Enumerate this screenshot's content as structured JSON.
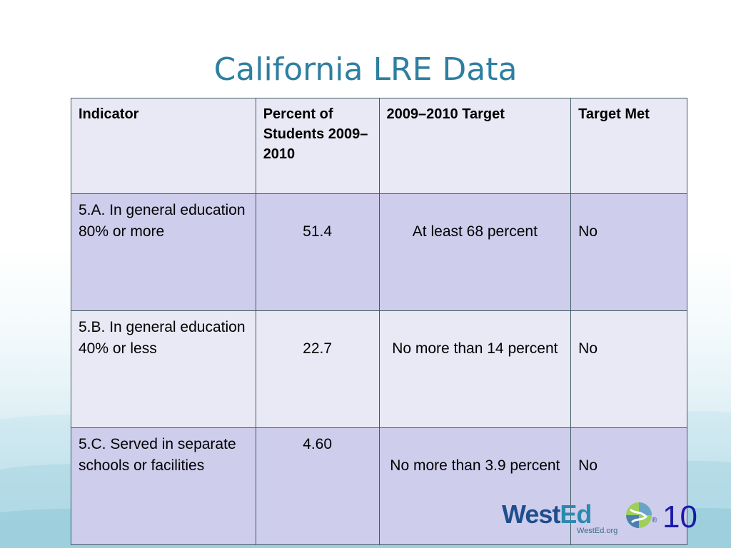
{
  "slide": {
    "title": "California LRE Data",
    "page_number": "10"
  },
  "table": {
    "headers": [
      "Indicator",
      "Percent of Students 2009–2010",
      "2009–2010 Target",
      "Target Met"
    ],
    "rows": [
      {
        "indicator": "5.A. In general education 80% or more",
        "percent": "51.4",
        "target": "At least 68 percent",
        "met": "No"
      },
      {
        "indicator": "5.B. In general education 40% or less",
        "percent": "22.7",
        "target": "No more than 14 percent",
        "met": "No"
      },
      {
        "indicator": "5.C. Served in separate schools or facilities",
        "percent": "4.60",
        "target": "No more than 3.9 percent",
        "met": "No"
      }
    ]
  },
  "logo": {
    "word_1": "West",
    "word_2": "Ed",
    "registered": "®",
    "url": "WestEd.org"
  },
  "colors": {
    "title": "#2e7fa0",
    "header_bg": "#e9e8f5",
    "row_dark_bg": "#cfcdec",
    "row_light_bg": "#e9e8f5",
    "page_number": "#1a1aa8",
    "logo_blue": "#1f4e8c"
  }
}
